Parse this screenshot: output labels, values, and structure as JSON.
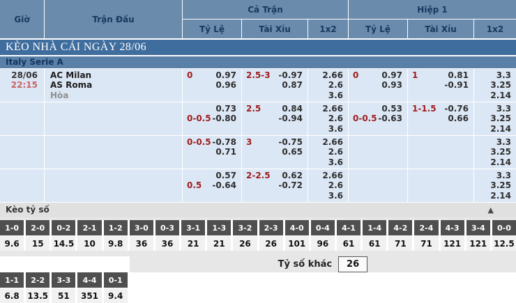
{
  "colors": {
    "header_blue": "#6b8bad",
    "section_blue": "#3f6d9d",
    "league_blue": "#5b80a8",
    "row_bg": "#dce7f5",
    "handicap_red": "#9e1b1b",
    "time_red": "#c96464",
    "score_header_gray": "#4f4f4f"
  },
  "table_header": {
    "time": "Giờ",
    "match": "Trận Đấu",
    "full_time": "Cả Trận",
    "first_half": "Hiệp 1",
    "odds": "Tỷ Lệ",
    "over_under": "Tài Xỉu",
    "one_x_two": "1x2"
  },
  "section_title": "KÈO NHÀ CÁI NGÀY 28/06",
  "league_title": "Italy Serie A",
  "match": {
    "date": "28/06",
    "time": "22:15",
    "home_team": "AC Milan",
    "away_team": "AS Roma",
    "draw_label": "Hòa"
  },
  "odds_rows": [
    {
      "ft_hcp_label": [
        "0",
        ""
      ],
      "ft_hcp_odds": [
        "0.97",
        "0.96"
      ],
      "ft_ou_label": [
        "2.5-3",
        ""
      ],
      "ft_ou_odds": [
        "-0.97",
        "0.87"
      ],
      "ft_1x2": [
        "2.66",
        "2.6",
        "3.6"
      ],
      "h1_hcp_label": [
        "0",
        ""
      ],
      "h1_hcp_odds": [
        "0.97",
        "0.93"
      ],
      "h1_ou_label": [
        "1",
        ""
      ],
      "h1_ou_odds": [
        "0.81",
        "-0.91"
      ],
      "h1_1x2": [
        "3.3",
        "3.25",
        "2.14"
      ]
    },
    {
      "ft_hcp_label": [
        "",
        "0-0.5"
      ],
      "ft_hcp_odds": [
        "0.73",
        "-0.80"
      ],
      "ft_ou_label": [
        "2.5",
        ""
      ],
      "ft_ou_odds": [
        "0.84",
        "-0.94"
      ],
      "ft_1x2": [
        "2.66",
        "2.6",
        "3.6"
      ],
      "h1_hcp_label": [
        "",
        "0-0.5"
      ],
      "h1_hcp_odds": [
        "0.53",
        "-0.63"
      ],
      "h1_ou_label": [
        "1-1.5",
        ""
      ],
      "h1_ou_odds": [
        "-0.76",
        "0.66"
      ],
      "h1_1x2": [
        "3.3",
        "3.25",
        "2.14"
      ]
    },
    {
      "ft_hcp_label": [
        "0-0.5",
        ""
      ],
      "ft_hcp_odds": [
        "-0.78",
        "0.71"
      ],
      "ft_ou_label": [
        "3",
        ""
      ],
      "ft_ou_odds": [
        "-0.75",
        "0.65"
      ],
      "ft_1x2": [
        "2.66",
        "2.6",
        "3.6"
      ],
      "h1_hcp_label": [
        "",
        ""
      ],
      "h1_hcp_odds": [
        "",
        ""
      ],
      "h1_ou_label": [
        "",
        ""
      ],
      "h1_ou_odds": [
        "",
        ""
      ],
      "h1_1x2": [
        "3.3",
        "3.25",
        "2.14"
      ]
    },
    {
      "ft_hcp_label": [
        "",
        "0.5"
      ],
      "ft_hcp_odds": [
        "0.57",
        "-0.64"
      ],
      "ft_ou_label": [
        "2-2.5",
        ""
      ],
      "ft_ou_odds": [
        "0.62",
        "-0.72"
      ],
      "ft_1x2": [
        "2.66",
        "2.6",
        "3.6"
      ],
      "h1_hcp_label": [
        "",
        ""
      ],
      "h1_hcp_odds": [
        "",
        ""
      ],
      "h1_ou_label": [
        "",
        ""
      ],
      "h1_ou_odds": [
        "",
        ""
      ],
      "h1_1x2": [
        "3.3",
        "3.25",
        "2.14"
      ]
    }
  ],
  "score_section": {
    "title": "Kèo tỷ số",
    "collapse_icon": "▲",
    "row1": [
      {
        "score": "1-0",
        "odds": "9.6"
      },
      {
        "score": "2-0",
        "odds": "15"
      },
      {
        "score": "0-2",
        "odds": "14.5"
      },
      {
        "score": "2-1",
        "odds": "10"
      },
      {
        "score": "1-2",
        "odds": "9.8"
      },
      {
        "score": "3-0",
        "odds": "36"
      },
      {
        "score": "0-3",
        "odds": "36"
      },
      {
        "score": "3-1",
        "odds": "21"
      },
      {
        "score": "1-3",
        "odds": "21"
      },
      {
        "score": "3-2",
        "odds": "26"
      },
      {
        "score": "2-3",
        "odds": "26"
      },
      {
        "score": "4-0",
        "odds": "101"
      },
      {
        "score": "0-4",
        "odds": "96"
      },
      {
        "score": "4-1",
        "odds": "61"
      },
      {
        "score": "1-4",
        "odds": "61"
      },
      {
        "score": "4-2",
        "odds": "71"
      },
      {
        "score": "2-4",
        "odds": "71"
      },
      {
        "score": "4-3",
        "odds": "121"
      },
      {
        "score": "3-4",
        "odds": "121"
      },
      {
        "score": "0-0",
        "odds": "12.5"
      }
    ],
    "row2": [
      {
        "score": "1-1",
        "odds": "6.8"
      },
      {
        "score": "2-2",
        "odds": "13.5"
      },
      {
        "score": "3-3",
        "odds": "51"
      },
      {
        "score": "4-4",
        "odds": "351"
      },
      {
        "score": "0-1",
        "odds": "9.4"
      }
    ],
    "other_score_label": "Tỷ số khác",
    "other_score_value": "26"
  }
}
